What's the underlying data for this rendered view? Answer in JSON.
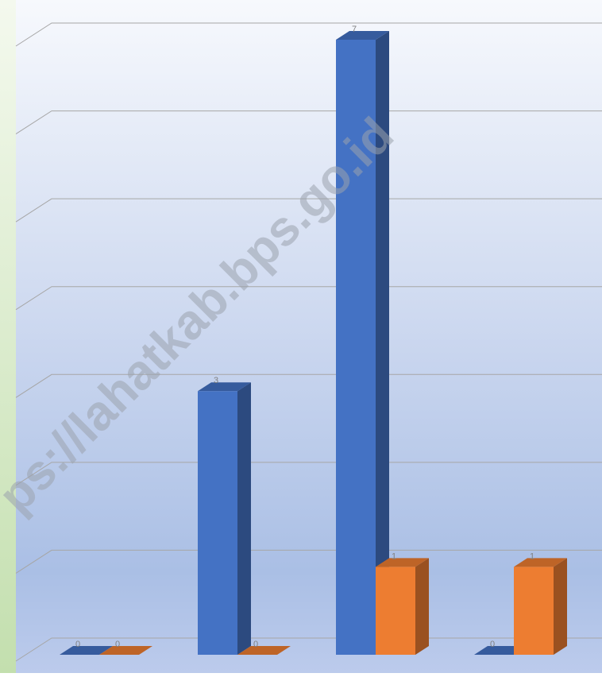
{
  "chart_data": {
    "type": "bar3d",
    "categories": [
      null,
      null,
      null,
      null
    ],
    "series": [
      {
        "color": "#4472c4",
        "values": [
          0,
          3,
          7,
          0
        ]
      },
      {
        "color": "#ed7d31",
        "values": [
          0,
          0,
          1,
          1
        ]
      }
    ],
    "ylim": [
      0,
      7
    ],
    "yticks": [
      0,
      1,
      2,
      3,
      4,
      5,
      6,
      7
    ],
    "grid": true,
    "watermark": "ps://lahatkab.bps.go.id"
  }
}
